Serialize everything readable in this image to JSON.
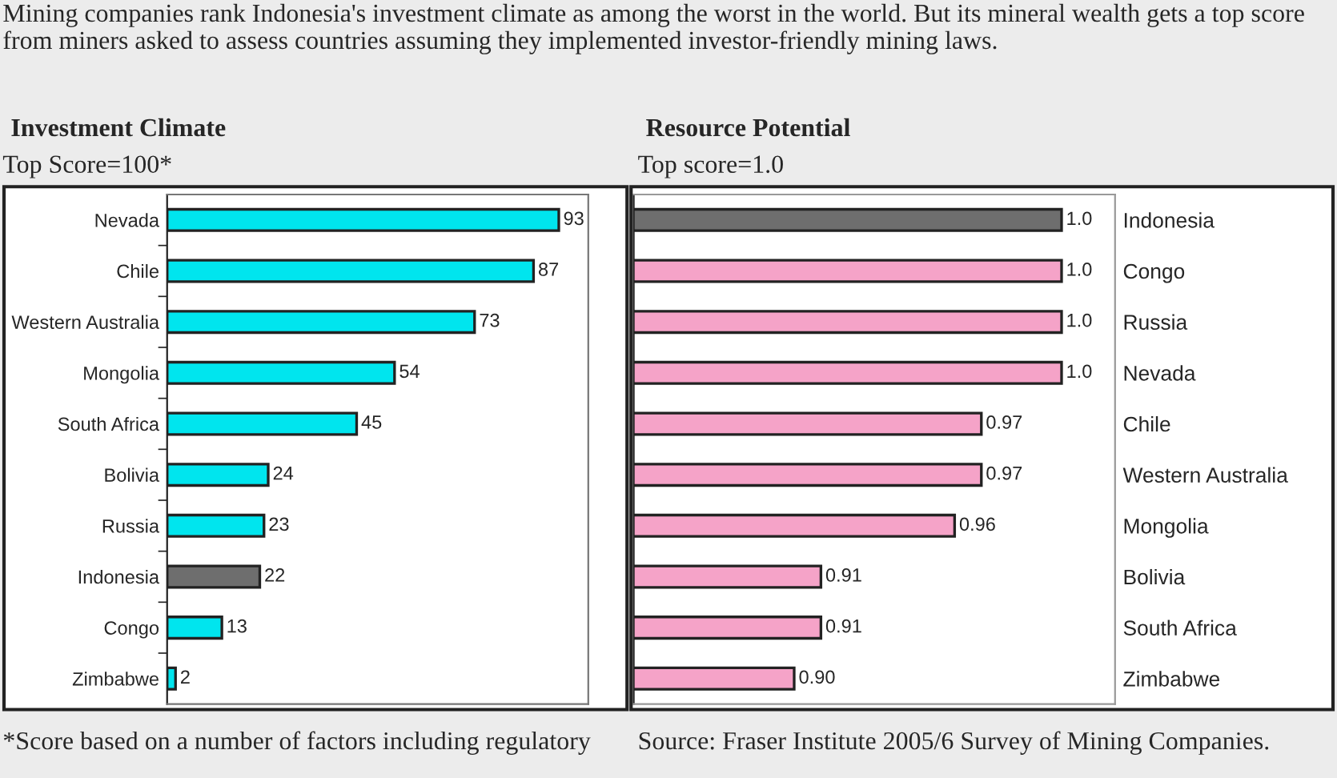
{
  "chart_data": [
    {
      "type": "bar",
      "orientation": "horizontal",
      "title": "Investment Climate",
      "subtitle": "Top Score=100*",
      "categories": [
        "Nevada",
        "Chile",
        "Western Australia",
        "Mongolia",
        "South Africa",
        "Bolivia",
        "Russia",
        "Indonesia",
        "Congo",
        "Zimbabwe"
      ],
      "values": [
        93,
        87,
        73,
        54,
        45,
        24,
        23,
        22,
        13,
        2
      ],
      "colors": [
        "#00e5ee",
        "#00e5ee",
        "#00e5ee",
        "#00e5ee",
        "#00e5ee",
        "#00e5ee",
        "#00e5ee",
        "#6e6e6e",
        "#00e5ee",
        "#00e5ee"
      ],
      "xlim": [
        0,
        100
      ],
      "data_labels": true,
      "tick_labels": "y",
      "grid": false,
      "legend": false,
      "annotations": [
        "Mining companies rank Indonesia's investment climate as among the worst in the world. But its mineral wealth gets a top score from miners asked to assess countries assuming they implemented investor-friendly mining laws.",
        "*Score based on a number of factors including regulatory"
      ]
    },
    {
      "type": "bar",
      "orientation": "horizontal",
      "title": "Resource Potential",
      "subtitle": "Top score=1.0",
      "categories": [
        "Indonesia",
        "Congo",
        "Russia",
        "Nevada",
        "Chile",
        "Western Australia",
        "Mongolia",
        "Bolivia",
        "South Africa",
        "Zimbabwe"
      ],
      "values": [
        1.0,
        1.0,
        1.0,
        1.0,
        0.97,
        0.97,
        0.96,
        0.91,
        0.91,
        0.9
      ],
      "value_labels": [
        "1.0",
        "1.0",
        "1.0",
        "1.0",
        "0.97",
        "0.97",
        "0.96",
        "0.91",
        "0.91",
        "0.90"
      ],
      "colors": [
        "#6e6e6e",
        "#f5a3c8",
        "#f5a3c8",
        "#f5a3c8",
        "#f5a3c8",
        "#f5a3c8",
        "#f5a3c8",
        "#f5a3c8",
        "#f5a3c8",
        "#f5a3c8"
      ],
      "xlim": [
        0.84,
        1.02
      ],
      "tick_labels": "y",
      "grid": false,
      "legend": false,
      "annotations": [
        "Source: Fraser Institute 2005/6 Survey of Mining Companies."
      ]
    }
  ]
}
